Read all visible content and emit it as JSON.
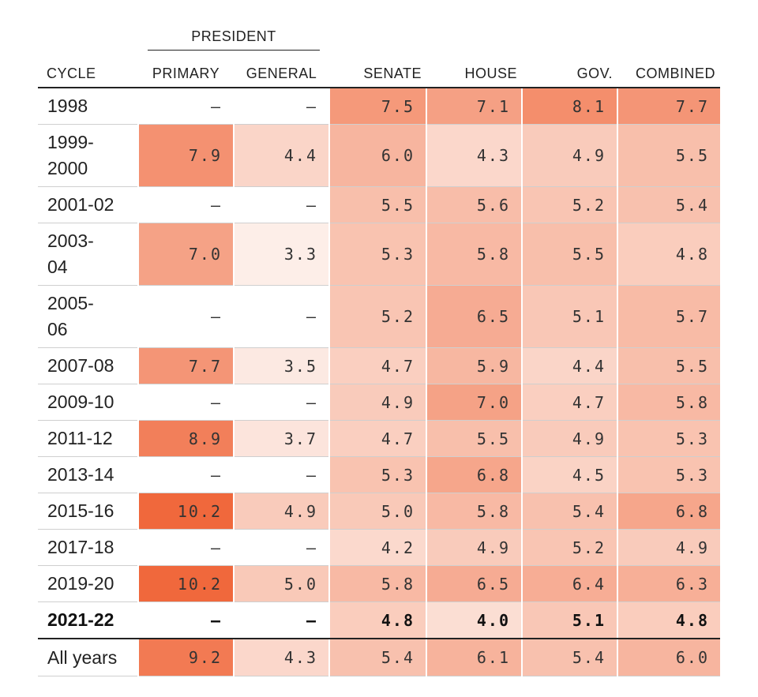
{
  "table": {
    "super_header": "PRESIDENT",
    "columns": [
      "CYCLE",
      "PRIMARY",
      "GENERAL",
      "SENATE",
      "HOUSE",
      "GOV.",
      "COMBINED"
    ],
    "colors": {
      "blank": "#ffffff",
      "scale_low": "#fdf1ec",
      "scale_high": "#f0683c"
    },
    "rows": [
      {
        "cycle": "1998",
        "primary": "–",
        "general": "–",
        "senate": "7.5",
        "house": "7.1",
        "gov": "8.1",
        "combined": "7.7"
      },
      {
        "cycle": "1999-\n2000",
        "primary": "7.9",
        "general": "4.4",
        "senate": "6.0",
        "house": "4.3",
        "gov": "4.9",
        "combined": "5.5"
      },
      {
        "cycle": "2001-02",
        "primary": "–",
        "general": "–",
        "senate": "5.5",
        "house": "5.6",
        "gov": "5.2",
        "combined": "5.4"
      },
      {
        "cycle": "2003-\n04",
        "primary": "7.0",
        "general": "3.3",
        "senate": "5.3",
        "house": "5.8",
        "gov": "5.5",
        "combined": "4.8"
      },
      {
        "cycle": "2005-\n06",
        "primary": "–",
        "general": "–",
        "senate": "5.2",
        "house": "6.5",
        "gov": "5.1",
        "combined": "5.7"
      },
      {
        "cycle": "2007-08",
        "primary": "7.7",
        "general": "3.5",
        "senate": "4.7",
        "house": "5.9",
        "gov": "4.4",
        "combined": "5.5"
      },
      {
        "cycle": "2009-10",
        "primary": "–",
        "general": "–",
        "senate": "4.9",
        "house": "7.0",
        "gov": "4.7",
        "combined": "5.8"
      },
      {
        "cycle": "2011-12",
        "primary": "8.9",
        "general": "3.7",
        "senate": "4.7",
        "house": "5.5",
        "gov": "4.9",
        "combined": "5.3"
      },
      {
        "cycle": "2013-14",
        "primary": "–",
        "general": "–",
        "senate": "5.3",
        "house": "6.8",
        "gov": "4.5",
        "combined": "5.3"
      },
      {
        "cycle": "2015-16",
        "primary": "10.2",
        "general": "4.9",
        "senate": "5.0",
        "house": "5.8",
        "gov": "5.4",
        "combined": "6.8"
      },
      {
        "cycle": "2017-18",
        "primary": "–",
        "general": "–",
        "senate": "4.2",
        "house": "4.9",
        "gov": "5.2",
        "combined": "4.9"
      },
      {
        "cycle": "2019-20",
        "primary": "10.2",
        "general": "5.0",
        "senate": "5.8",
        "house": "6.5",
        "gov": "6.4",
        "combined": "6.3"
      },
      {
        "cycle": "2021-22",
        "primary": "–",
        "general": "–",
        "senate": "4.8",
        "house": "4.0",
        "gov": "5.1",
        "combined": "4.8",
        "bold": true
      },
      {
        "cycle": "All years",
        "primary": "9.2",
        "general": "4.3",
        "senate": "5.4",
        "house": "6.1",
        "gov": "5.4",
        "combined": "6.0"
      }
    ]
  }
}
